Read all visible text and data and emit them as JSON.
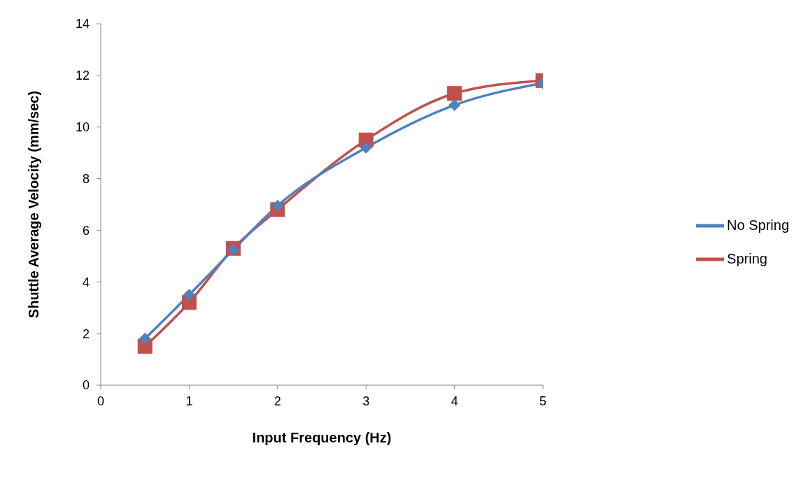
{
  "chart_data": {
    "type": "line",
    "xlabel": "Input Frequency (Hz)",
    "ylabel": "Shuttle Average Velocity (mm/sec)",
    "x": [
      0.5,
      1,
      1.5,
      2,
      3,
      4,
      5
    ],
    "series": [
      {
        "name": "Spring",
        "color": "#c0504d",
        "marker": "square",
        "values": [
          1.5,
          3.2,
          5.3,
          6.8,
          9.5,
          11.3,
          11.8
        ]
      },
      {
        "name": "No Spring",
        "color": "#4f81bd",
        "marker": "diamond",
        "values": [
          1.8,
          3.5,
          5.25,
          6.95,
          9.2,
          10.85,
          11.7
        ]
      }
    ],
    "xlim": [
      0,
      5
    ],
    "xticks": [
      0,
      1,
      2,
      3,
      4,
      5
    ],
    "ylim": [
      0,
      14
    ],
    "yticks": [
      0,
      2,
      4,
      6,
      8,
      10,
      12,
      14
    ],
    "grid": false,
    "legend": "right",
    "line_style": "solid"
  }
}
